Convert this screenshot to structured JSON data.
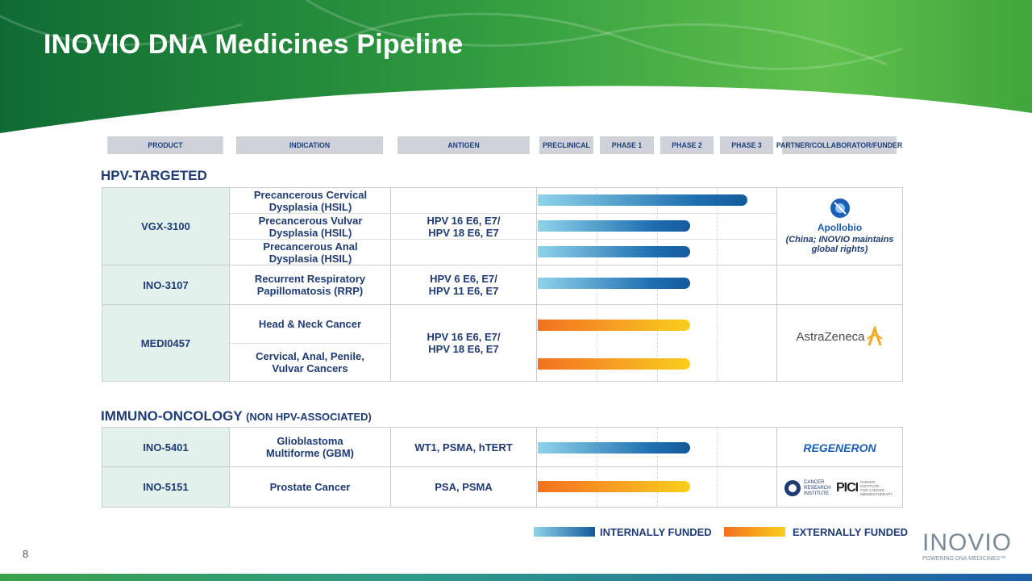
{
  "title": "INOVIO DNA Medicines Pipeline",
  "headers": {
    "product": "PRODUCT",
    "indication": "INDICATION",
    "antigen": "ANTIGEN",
    "preclinical": "PRECLINICAL",
    "phase1": "PHASE 1",
    "phase2": "PHASE 2",
    "phase3": "PHASE 3",
    "partner": "PARTNER/COLLABORATOR/FUNDER"
  },
  "sections": {
    "hpv": "HPV-TARGETED",
    "immuno": "IMMUNO-ONCOLOGY",
    "immuno_sub": "(NON HPV-ASSOCIATED)"
  },
  "programs": {
    "vgx3100": {
      "product": "VGX-3100",
      "indications": [
        "Precancerous Cervical Dysplasia (HSIL)",
        "Precancerous Vulvar Dysplasia (HSIL)",
        "Precancerous Anal Dysplasia (HSIL)"
      ],
      "antigen_line1": "HPV 16 E6, E7/",
      "antigen_line2": "HPV 18 E6, E7",
      "progress": [
        "Phase 3",
        "Phase 2",
        "Phase 2"
      ],
      "funding": "internal",
      "partner_name": "Apollobio",
      "partner_note_line1": "(China; INOVIO maintains",
      "partner_note_line2": "global rights)"
    },
    "ino3107": {
      "product": "INO-3107",
      "indication_line1": "Recurrent Respiratory",
      "indication_line2": "Papillomatosis (RRP)",
      "antigen_line1": "HPV 6 E6, E7/",
      "antigen_line2": "HPV 11 E6, E7",
      "progress": "Phase 2",
      "funding": "internal"
    },
    "medi0457": {
      "product": "MEDI0457",
      "indication1": "Head & Neck Cancer",
      "indication2_line1": "Cervical, Anal, Penile,",
      "indication2_line2": "Vulvar Cancers",
      "antigen_line1": "HPV 16 E6, E7/",
      "antigen_line2": "HPV 18 E6, E7",
      "progress": [
        "Phase 2",
        "Phase 2"
      ],
      "funding": "external",
      "partner_name": "AstraZeneca"
    },
    "ino5401": {
      "product": "INO-5401",
      "indication_line1": "Glioblastoma",
      "indication_line2": "Multiforme (GBM)",
      "antigen": "WT1, PSMA, hTERT",
      "progress": "Phase 2",
      "funding": "internal",
      "partner_name": "REGENERON"
    },
    "ino5151": {
      "product": "INO-5151",
      "indication": "Prostate Cancer",
      "antigen": "PSA, PSMA",
      "progress": "Phase 2",
      "funding": "external",
      "partner1_line1": "CANCER",
      "partner1_line2": "RESEARCH",
      "partner1_line3": "INSTITUTE",
      "partner2_name": "PICI",
      "partner2_line1": "PARKER",
      "partner2_line2": "INSTITUTE",
      "partner2_line3": "FOR CANCER",
      "partner2_line4": "IMMUNOTHERAPY"
    }
  },
  "legend": {
    "internal": "INTERNALLY FUNDED",
    "external": "EXTERNALLY FUNDED"
  },
  "page_number": "8",
  "logo": {
    "name": "INOVIO",
    "tagline": "POWERING DNA MEDICINES™"
  },
  "colors": {
    "navy": "#1f3b73",
    "green": "#3aa14a",
    "internal_bar_end": "#145a9c",
    "external_bar_start": "#f37021",
    "external_bar_end": "#f9cf1c",
    "product_cell": "#e2f1ec",
    "regeneron": "#1a5fb4"
  }
}
